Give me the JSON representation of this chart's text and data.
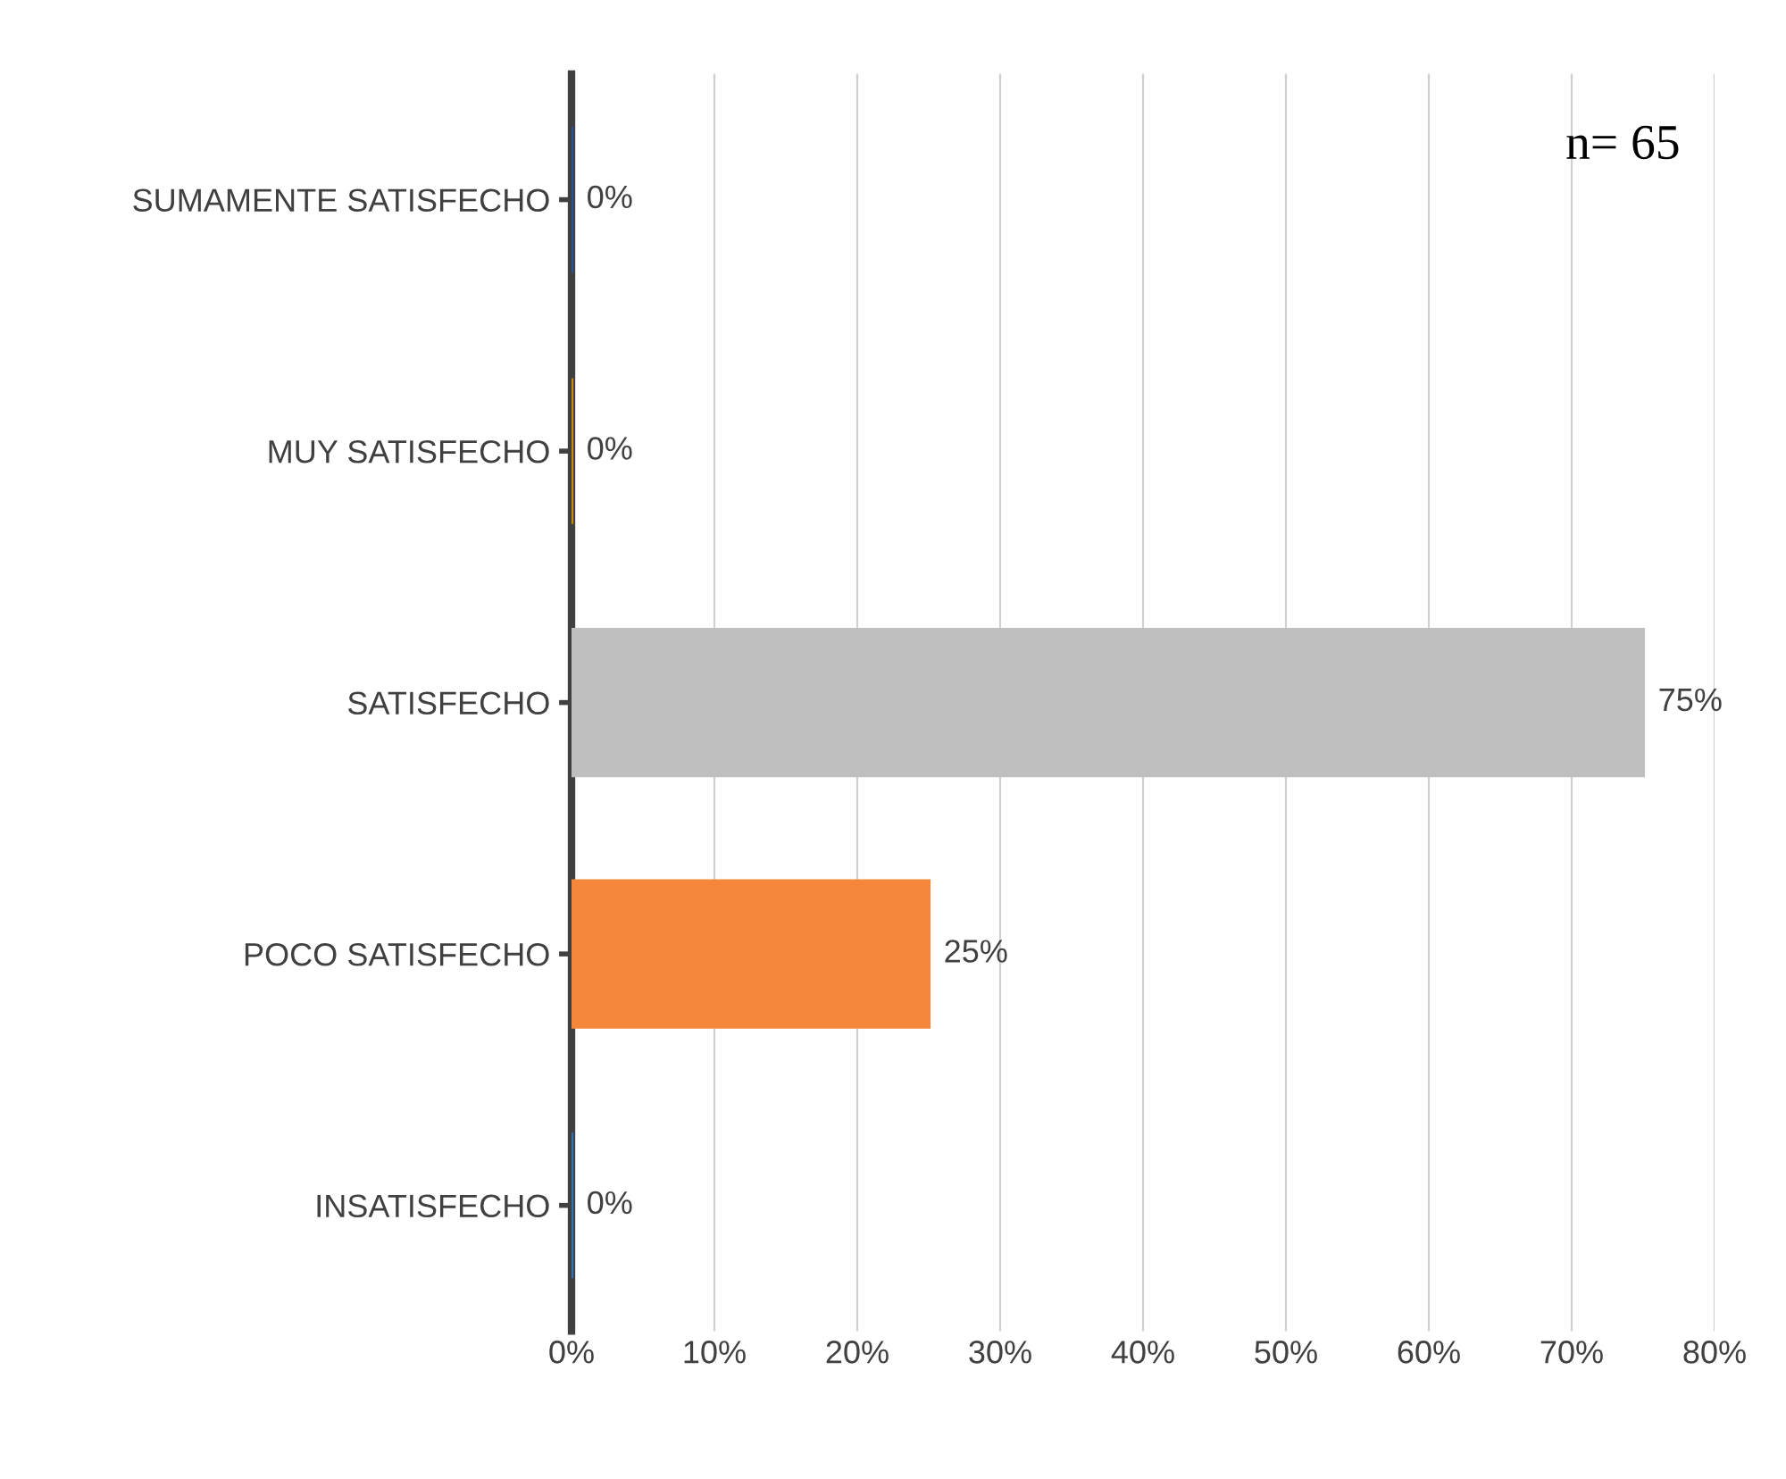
{
  "chart_data": {
    "type": "bar",
    "orientation": "horizontal",
    "categories": [
      "SUMAMENTE SATISFECHO",
      "MUY SATISFECHO",
      "SATISFECHO",
      "POCO SATISFECHO",
      "INSATISFECHO"
    ],
    "values": [
      0,
      0,
      75,
      25,
      0
    ],
    "colors": [
      "#2f4f8f",
      "#bf9000",
      "#bfbfbf",
      "#f4873a",
      "#3c6fa8"
    ],
    "value_labels": [
      "0%",
      "0%",
      "75%",
      "25%",
      "0%"
    ],
    "xlim": [
      0,
      80
    ],
    "xticks": [
      {
        "value": 0,
        "label": "0%"
      },
      {
        "value": 10,
        "label": "10%"
      },
      {
        "value": 20,
        "label": "20%"
      },
      {
        "value": 30,
        "label": "30%"
      },
      {
        "value": 40,
        "label": "40%"
      },
      {
        "value": 50,
        "label": "50%"
      },
      {
        "value": 60,
        "label": "60%"
      },
      {
        "value": 70,
        "label": "70%"
      },
      {
        "value": 80,
        "label": "80%"
      }
    ],
    "grid": "x",
    "annotations": [
      "n= 65"
    ]
  }
}
